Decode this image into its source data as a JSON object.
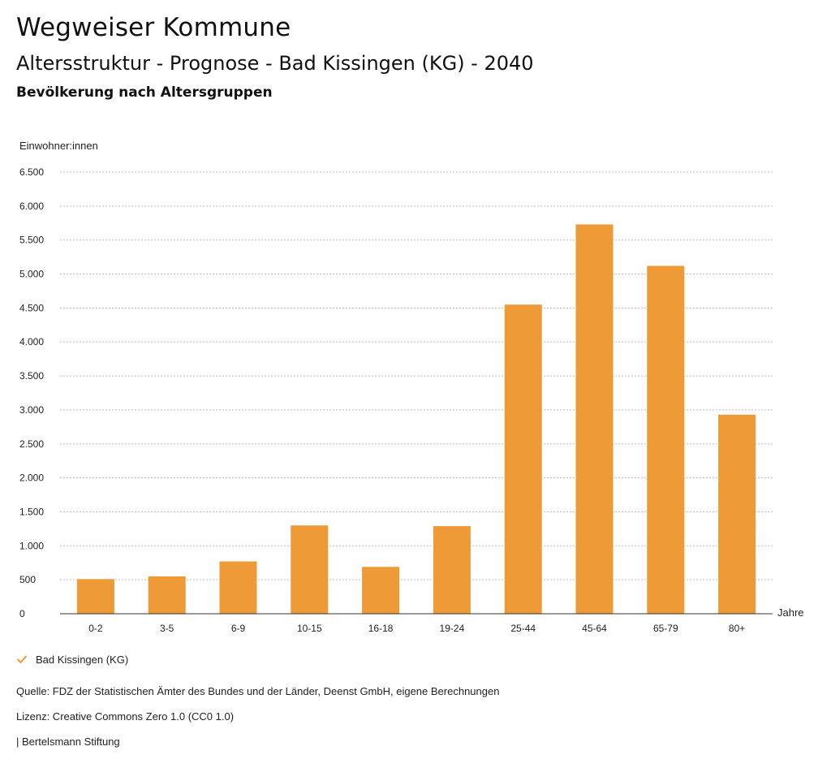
{
  "header": {
    "title": "Wegweiser Kommune",
    "subtitle": "Altersstruktur - Prognose - Bad Kissingen (KG) - 2040",
    "chart_heading": "Bevölkerung nach Altersgruppen"
  },
  "legend": {
    "label": "Bad Kissingen (KG)"
  },
  "footer": {
    "source": "Quelle: FDZ der Statistischen Ämter des Bundes und der Länder, Deenst GmbH, eigene Berechnungen",
    "license": "Lizenz: Creative Commons Zero 1.0 (CC0 1.0)",
    "publisher": "| Bertelsmann Stiftung"
  },
  "colors": {
    "bar": "#ED9A37",
    "grid": "#BDBDBD",
    "axis": "#333333",
    "text": "#222222"
  },
  "chart_data": {
    "type": "bar",
    "title": "Bevölkerung nach Altersgruppen",
    "xlabel": "Jahre",
    "ylabel": "Einwohner:innen",
    "categories": [
      "0-2",
      "3-5",
      "6-9",
      "10-15",
      "16-18",
      "19-24",
      "25-44",
      "45-64",
      "65-79",
      "80+"
    ],
    "series": [
      {
        "name": "Bad Kissingen (KG)",
        "values": [
          510,
          550,
          770,
          1300,
          690,
          1290,
          4550,
          5730,
          5120,
          2930
        ]
      }
    ],
    "yticks": [
      0,
      500,
      1000,
      1500,
      2000,
      2500,
      3000,
      3500,
      4000,
      4500,
      5000,
      5500,
      6000,
      6500
    ],
    "ytick_labels": [
      "0",
      "500",
      "1.000",
      "1.500",
      "2.000",
      "2.500",
      "3.000",
      "3.500",
      "4.000",
      "4.500",
      "5.000",
      "5.500",
      "6.000",
      "6.500"
    ],
    "ylim": [
      0,
      6500
    ],
    "grid": true,
    "legend_position": "bottom-left"
  }
}
